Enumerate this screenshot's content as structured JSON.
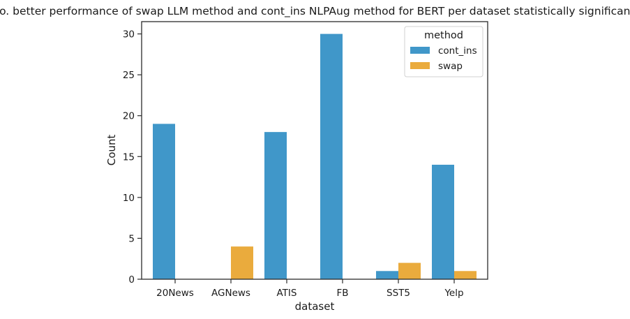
{
  "chart_data": {
    "type": "bar",
    "title": "No. better performance of swap LLM method and cont_ins NLPAug method for BERT per dataset statistically significant.",
    "xlabel": "dataset",
    "ylabel": "Count",
    "categories": [
      "20News",
      "AGNews",
      "ATIS",
      "FB",
      "SST5",
      "Yelp"
    ],
    "series": [
      {
        "name": "cont_ins",
        "values": [
          19,
          0,
          18,
          30,
          1,
          14
        ],
        "color": "#4097c9"
      },
      {
        "name": "swap",
        "values": [
          0,
          4,
          0,
          0,
          2,
          1
        ],
        "color": "#eaab3d"
      }
    ],
    "ylim": [
      0,
      31.5
    ],
    "yticks": [
      0,
      5,
      10,
      15,
      20,
      25,
      30
    ],
    "legend": {
      "title": "method",
      "position": "top-right"
    },
    "grid": false
  }
}
